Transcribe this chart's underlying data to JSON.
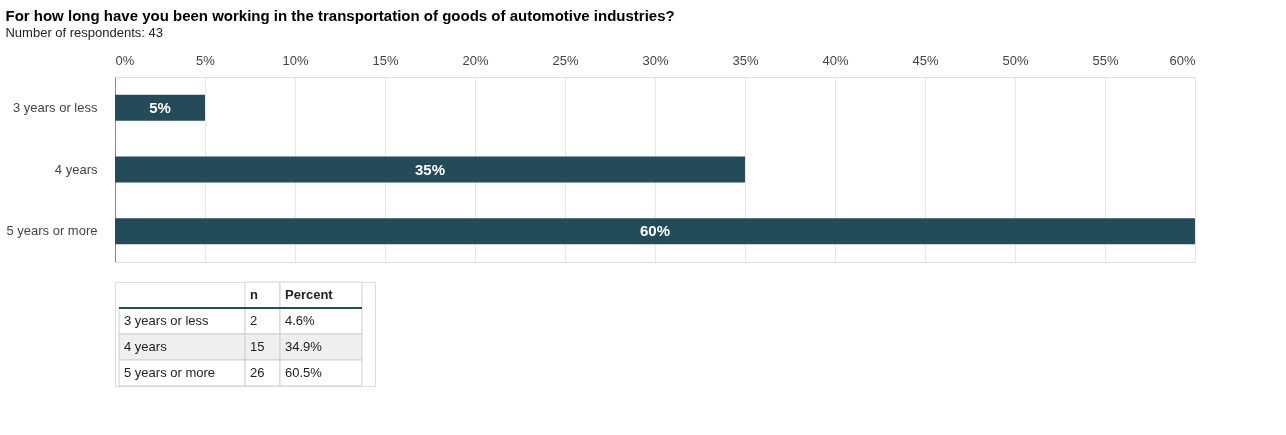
{
  "chart_data": {
    "type": "bar",
    "orientation": "horizontal",
    "title": "For how long have you been working in the transportation of goods of automotive industries?",
    "subtitle": "Number of respondents: 43",
    "categories": [
      "3 years or less",
      "4 years",
      "5 years or more"
    ],
    "values": [
      5,
      35,
      60
    ],
    "color": "#234b5a",
    "value_labels": [
      "5%",
      "35%",
      "60%"
    ],
    "xlim": [
      0,
      60
    ],
    "xticks": [
      {
        "value": 0,
        "label": "0%"
      },
      {
        "value": 5,
        "label": "5%"
      },
      {
        "value": 10,
        "label": "10%"
      },
      {
        "value": 15,
        "label": "15%"
      },
      {
        "value": 20,
        "label": "20%"
      },
      {
        "value": 25,
        "label": "25%"
      },
      {
        "value": 30,
        "label": "30%"
      },
      {
        "value": 35,
        "label": "35%"
      },
      {
        "value": 40,
        "label": "40%"
      },
      {
        "value": 45,
        "label": "45%"
      },
      {
        "value": 50,
        "label": "50%"
      },
      {
        "value": 55,
        "label": "55%"
      },
      {
        "value": 60,
        "label": "60%"
      }
    ],
    "grid": "x",
    "annotations": [
      "n",
      "Percent",
      "3 years or less",
      "2",
      "4.6%",
      "4 years",
      "15",
      "34.9%",
      "5 years or more",
      "26",
      "60.5%"
    ]
  }
}
